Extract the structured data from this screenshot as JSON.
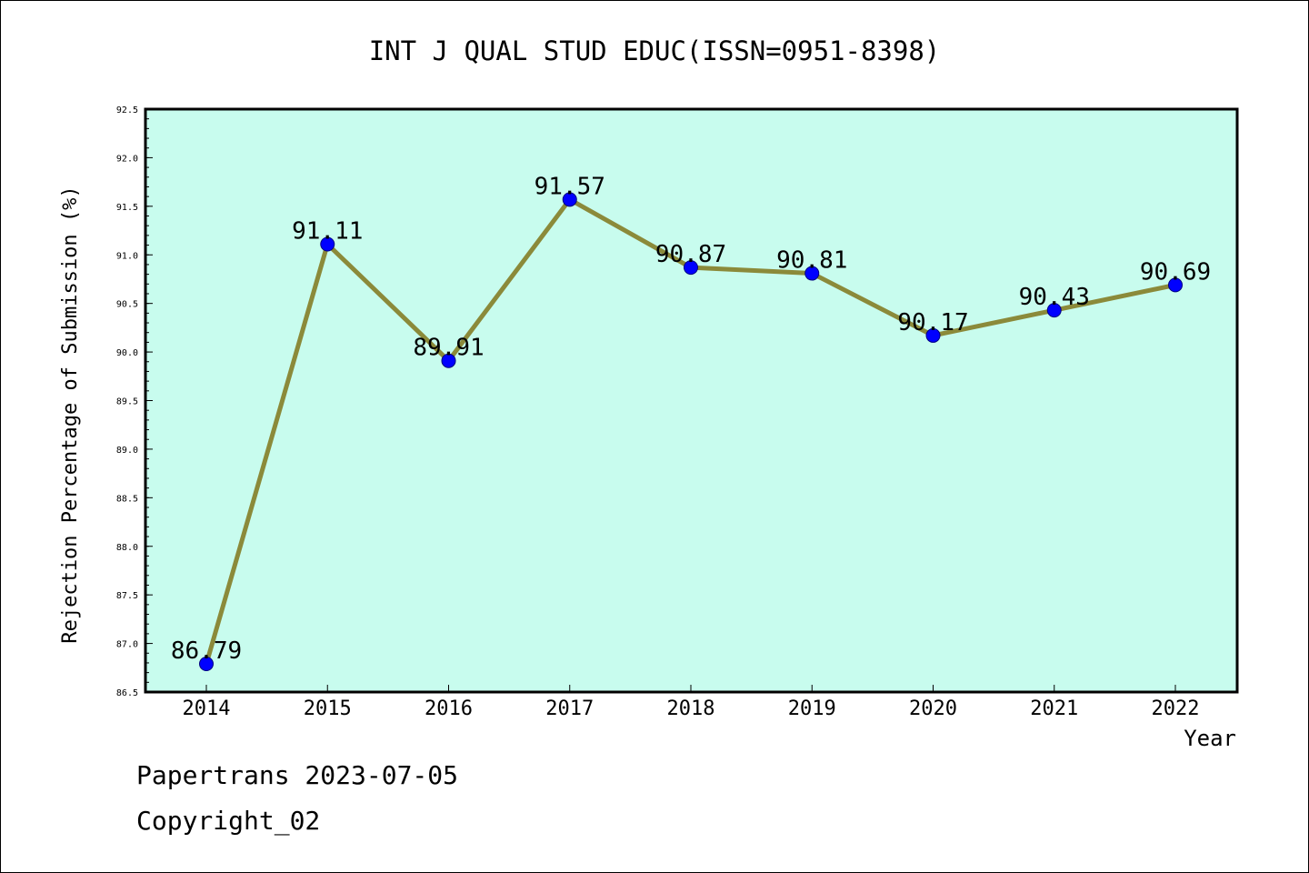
{
  "chart_data": {
    "type": "line",
    "title": "INT J QUAL STUD EDUC(ISSN=0951-8398)",
    "xlabel": "Year",
    "ylabel": "Rejection Percentage of Submission (%)",
    "categories": [
      "2014",
      "2015",
      "2016",
      "2017",
      "2018",
      "2019",
      "2020",
      "2021",
      "2022"
    ],
    "series": [
      {
        "values": [
          86.79,
          91.11,
          89.91,
          91.57,
          90.87,
          90.81,
          90.17,
          90.43,
          90.69
        ],
        "labels": [
          "86.79",
          "91.11",
          "89.91",
          "91.57",
          "90.87",
          "90.81",
          "90.17",
          "90.43",
          "90.69"
        ]
      }
    ],
    "ylim": [
      86.5,
      92.5
    ],
    "yticks": [
      "86.5",
      "87.0",
      "87.5",
      "88.0",
      "88.5",
      "89.0",
      "89.5",
      "90.0",
      "90.5",
      "91.0",
      "91.5",
      "92.0",
      "92.5"
    ],
    "grid": false,
    "colors": {
      "plot_bg": "#c8fcee",
      "line": "#8b8a3a",
      "marker": "#0000ff"
    }
  },
  "footer": {
    "line1": "Papertrans 2023-07-05",
    "line2": "Copyright_02"
  }
}
